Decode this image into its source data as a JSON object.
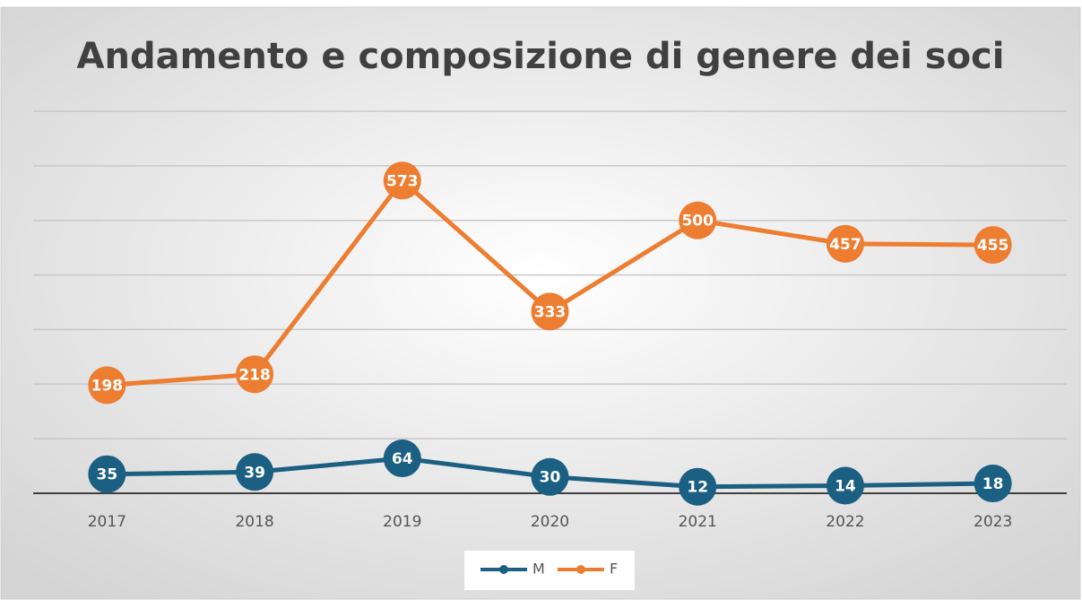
{
  "chart_data": {
    "type": "line",
    "title": "Andamento e composizione di genere dei soci",
    "categories": [
      "2017",
      "2018",
      "2019",
      "2020",
      "2021",
      "2022",
      "2023"
    ],
    "series": [
      {
        "name": "M",
        "color": "#1b5f82",
        "values": [
          35,
          39,
          64,
          30,
          12,
          14,
          18
        ]
      },
      {
        "name": "F",
        "color": "#ed7d31",
        "values": [
          198,
          218,
          573,
          333,
          500,
          457,
          455
        ]
      }
    ],
    "ylim": [
      0,
      700
    ],
    "yticks": [
      0,
      100,
      200,
      300,
      400,
      500,
      600,
      700
    ],
    "grid": true,
    "legend": "bottom"
  }
}
